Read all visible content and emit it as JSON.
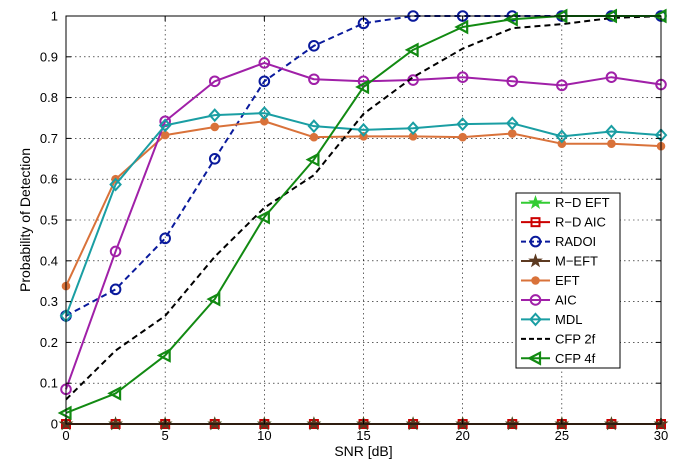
{
  "chart_data": {
    "type": "line",
    "title": "",
    "xlabel": "SNR [dB]",
    "ylabel": "Probability of Detection",
    "xlim": [
      0,
      30
    ],
    "ylim": [
      0,
      1
    ],
    "grid": true,
    "legend_position": "lower-right",
    "x": [
      0,
      2.5,
      5,
      7.5,
      10,
      12.5,
      15,
      17.5,
      20,
      22.5,
      25,
      27.5,
      30
    ],
    "xticks": [
      0,
      5,
      10,
      15,
      20,
      25,
      30
    ],
    "yticks": [
      0,
      0.1,
      0.2,
      0.3,
      0.4,
      0.5,
      0.6,
      0.7,
      0.8,
      0.9,
      1
    ],
    "series": [
      {
        "name": "R−D EFT",
        "color": "#33cc33",
        "marker": "star",
        "dash": "solid",
        "values": [
          0,
          0,
          0,
          0,
          0,
          0,
          0,
          0,
          0,
          0,
          0,
          0,
          0
        ]
      },
      {
        "name": "R−D AIC",
        "color": "#cc0000",
        "marker": "square",
        "dash": "solid",
        "values": [
          0,
          0,
          0,
          0,
          0,
          0,
          0,
          0,
          0,
          0,
          0,
          0,
          0
        ]
      },
      {
        "name": "RADOI",
        "color": "#0a1a9c",
        "marker": "circle",
        "dash": "dashed",
        "values": [
          0.265,
          0.33,
          0.455,
          0.65,
          0.84,
          0.927,
          0.982,
          1.0,
          1.0,
          1.0,
          1.0,
          1.0,
          1.0
        ]
      },
      {
        "name": "M−EFT",
        "color": "#5c3a21",
        "marker": "star",
        "dash": "solid",
        "values": [
          0,
          0,
          0,
          0,
          0,
          0,
          0,
          0,
          0,
          0,
          0,
          0,
          0
        ]
      },
      {
        "name": "EFT",
        "color": "#d9723a",
        "marker": "dot",
        "dash": "solid",
        "values": [
          0.338,
          0.6,
          0.708,
          0.728,
          0.742,
          0.703,
          0.705,
          0.705,
          0.703,
          0.712,
          0.687,
          0.687,
          0.681
        ]
      },
      {
        "name": "AIC",
        "color": "#a020a8",
        "marker": "circle",
        "dash": "solid",
        "values": [
          0.085,
          0.423,
          0.742,
          0.84,
          0.885,
          0.845,
          0.84,
          0.843,
          0.85,
          0.84,
          0.83,
          0.85,
          0.832
        ]
      },
      {
        "name": "MDL",
        "color": "#1a9ea3",
        "marker": "diamond",
        "dash": "solid",
        "values": [
          0.265,
          0.587,
          0.732,
          0.757,
          0.762,
          0.73,
          0.721,
          0.725,
          0.735,
          0.737,
          0.705,
          0.717,
          0.708
        ]
      },
      {
        "name": "CFP 2f",
        "color": "#000000",
        "marker": "none",
        "dash": "dashed",
        "values": [
          0.06,
          0.18,
          0.265,
          0.41,
          0.53,
          0.61,
          0.76,
          0.85,
          0.92,
          0.97,
          0.98,
          0.995,
          1.0
        ]
      },
      {
        "name": "CFP 4f",
        "color": "#128a12",
        "marker": "triangle-left",
        "dash": "solid",
        "values": [
          0.027,
          0.075,
          0.168,
          0.306,
          0.507,
          0.648,
          0.826,
          0.917,
          0.973,
          0.992,
          1.0,
          1.0,
          1.0
        ]
      }
    ]
  }
}
